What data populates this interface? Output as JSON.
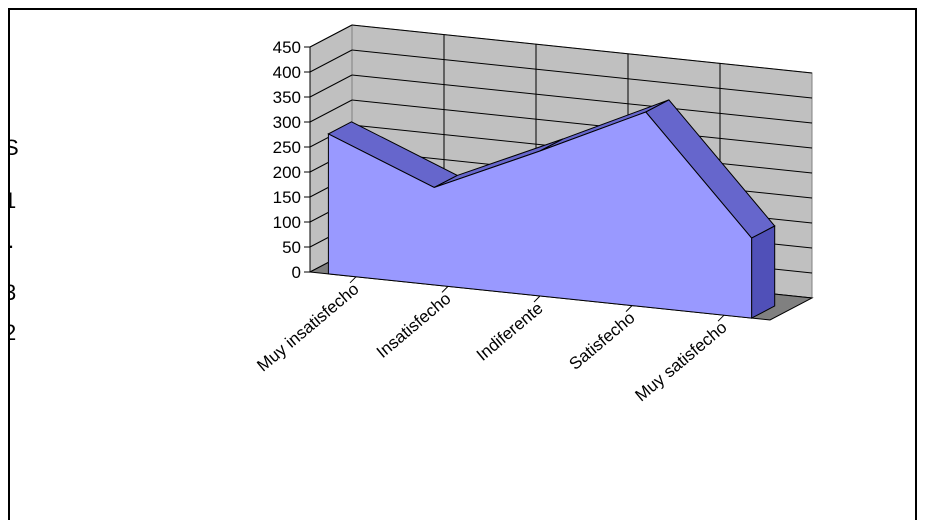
{
  "chart_data": {
    "type": "area",
    "three_d": true,
    "categories": [
      "Muy insatisfecho",
      "Insatisfecho",
      "Indiferente",
      "Satisfecho",
      "Muy satisfecho"
    ],
    "values": [
      280,
      195,
      290,
      390,
      160
    ],
    "ylim": [
      0,
      450
    ],
    "y_ticks": [
      "0",
      "50",
      "100",
      "150",
      "200",
      "250",
      "300",
      "350",
      "400",
      "450"
    ],
    "grid": true,
    "legend": "none",
    "title": "",
    "xlabel": "",
    "ylabel": "",
    "colors": {
      "area_front": "#9999ff",
      "area_top": "#6666cc",
      "area_side": "#5050b8",
      "wall": "#c0c0c0",
      "floor": "#808080"
    }
  },
  "clipped_left_glyphs": [
    "S",
    "1",
    ".",
    "3",
    "2"
  ]
}
